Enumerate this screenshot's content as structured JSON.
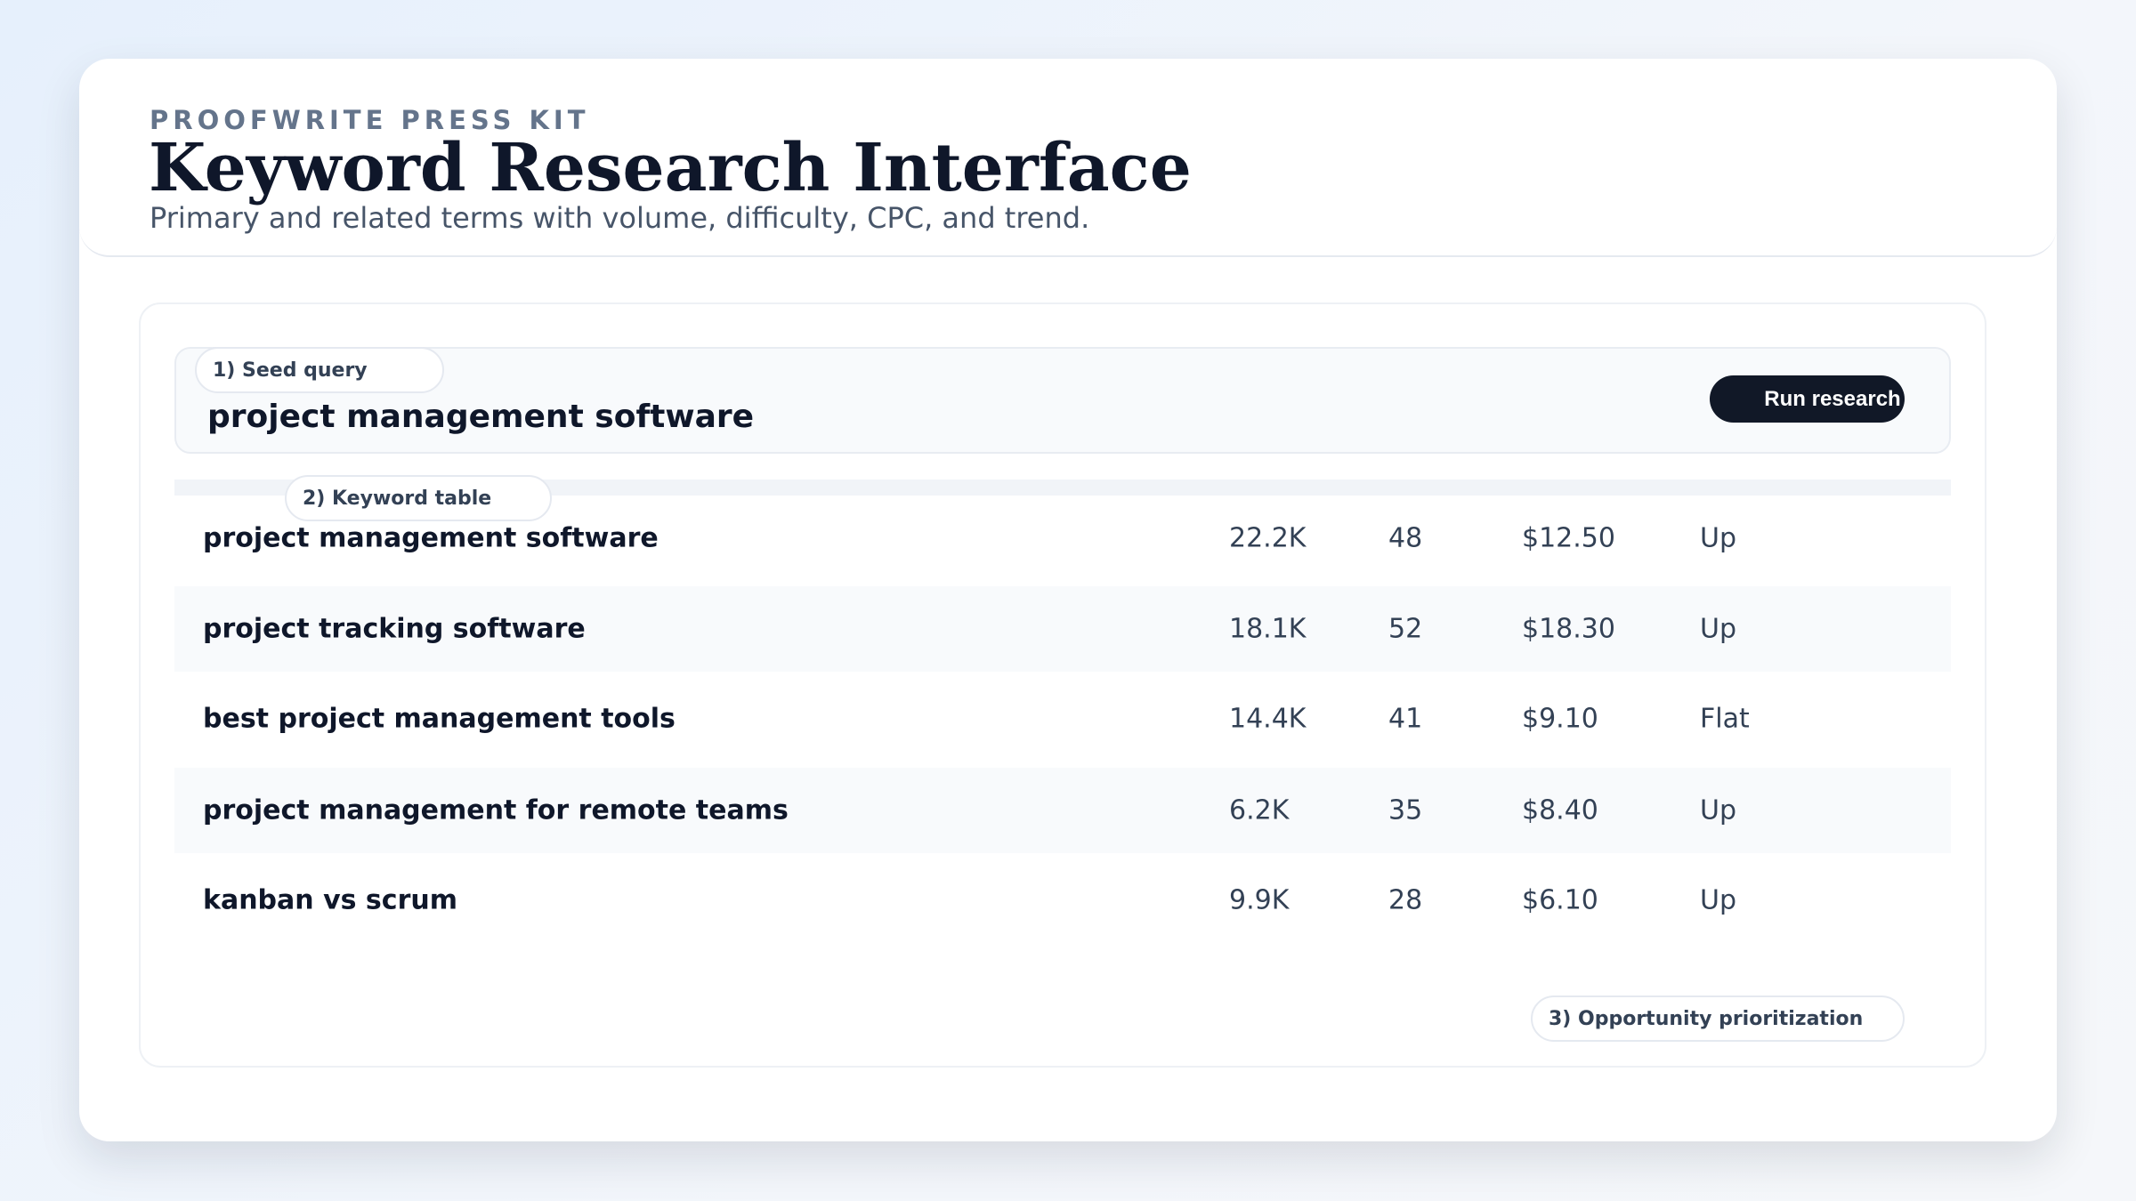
{
  "header": {
    "eyebrow": "PROOFWRITE PRESS KIT",
    "title": "Keyword Research Interface",
    "subtitle": "Primary and related terms with volume, difficulty, CPC, and trend."
  },
  "seed": {
    "label": "1) Seed query",
    "query": "project management software",
    "run_button": "Run research"
  },
  "table": {
    "label": "2) Keyword table",
    "rows": [
      {
        "keyword": "project management software",
        "volume": "22.2K",
        "difficulty": "48",
        "cpc": "$12.50",
        "trend": "Up"
      },
      {
        "keyword": "project tracking software",
        "volume": "18.1K",
        "difficulty": "52",
        "cpc": "$18.30",
        "trend": "Up"
      },
      {
        "keyword": "best project management tools",
        "volume": "14.4K",
        "difficulty": "41",
        "cpc": "$9.10",
        "trend": "Flat"
      },
      {
        "keyword": "project management for remote teams",
        "volume": "6.2K",
        "difficulty": "35",
        "cpc": "$8.40",
        "trend": "Up"
      },
      {
        "keyword": "kanban vs scrum",
        "volume": "9.9K",
        "difficulty": "28",
        "cpc": "$6.10",
        "trend": "Up"
      }
    ]
  },
  "prioritization": {
    "label": "3) Opportunity prioritization"
  },
  "colors": {
    "primary_button": "#111827",
    "text": "#0f172a",
    "muted": "#64748b"
  }
}
